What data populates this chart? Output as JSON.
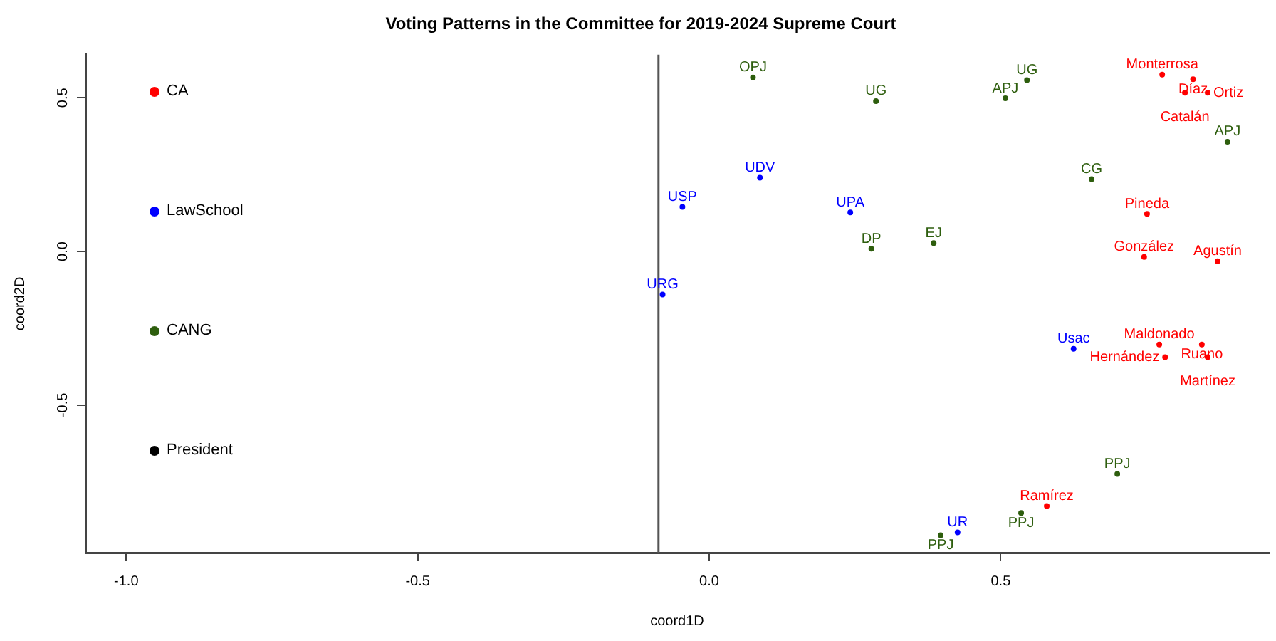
{
  "chart_data": {
    "type": "scatter",
    "title": "Voting Patterns in the Committee for 2019-2024 Supreme Court",
    "xlabel": "coord1D",
    "ylabel": "coord2D",
    "xlim": [
      -1.07,
      0.96
    ],
    "ylim": [
      -0.98,
      0.64
    ],
    "xticks": [
      {
        "value": -1,
        "label": "-1.0"
      },
      -0.5,
      {
        "value": 0,
        "label": "0.0"
      },
      0.5
    ],
    "yticks": [
      -0.5,
      {
        "value": 0,
        "label": "0.0"
      },
      0.5
    ],
    "grid": false,
    "legend": "left",
    "marker": "circle",
    "ref_lines": [
      {
        "axis": "x",
        "value": -0.087,
        "label": null,
        "color": "#555555"
      }
    ],
    "series": [
      {
        "name": "CA",
        "color": "#ff0000",
        "x": [
          0.777,
          0.83,
          0.816,
          0.855,
          0.751,
          0.746,
          0.872,
          0.772,
          0.845,
          0.782,
          0.855,
          0.579
        ],
        "values": [
          0.575,
          0.56,
          0.516,
          0.516,
          0.122,
          -0.018,
          -0.032,
          -0.303,
          -0.303,
          -0.344,
          -0.344,
          -0.828
        ],
        "value_labels": [
          "Monterrosa",
          "Díaz",
          "Catalán",
          "Ortiz",
          "Pineda",
          "González",
          "Agustín",
          "Maldonado",
          "Ruano",
          "Hernández",
          "Martínez",
          "Ramírez"
        ]
      },
      {
        "name": "LawSchool",
        "color": "#0000ff",
        "x": [
          0.087,
          -0.046,
          0.242,
          -0.08,
          0.625,
          0.426
        ],
        "values": [
          0.24,
          0.145,
          0.127,
          -0.14,
          -0.317,
          -0.914
        ],
        "value_labels": [
          "UDV",
          "USP",
          "UPA",
          "URG",
          "Usac",
          "UR"
        ]
      },
      {
        "name": "CANG",
        "color": "#2e5e0e",
        "x": [
          0.075,
          0.286,
          0.545,
          0.508,
          0.889,
          0.656,
          0.278,
          0.385,
          0.7,
          0.535,
          0.397
        ],
        "values": [
          0.566,
          0.489,
          0.557,
          0.498,
          0.357,
          0.235,
          0.009,
          0.027,
          -0.724,
          -0.851,
          -0.923
        ],
        "value_labels": [
          "OPJ",
          "UG",
          "UG",
          "APJ",
          "APJ",
          "CG",
          "DP",
          "EJ",
          "PPJ",
          "PPJ",
          "PPJ"
        ]
      },
      {
        "name": "President",
        "color": "#000000"
      }
    ]
  }
}
